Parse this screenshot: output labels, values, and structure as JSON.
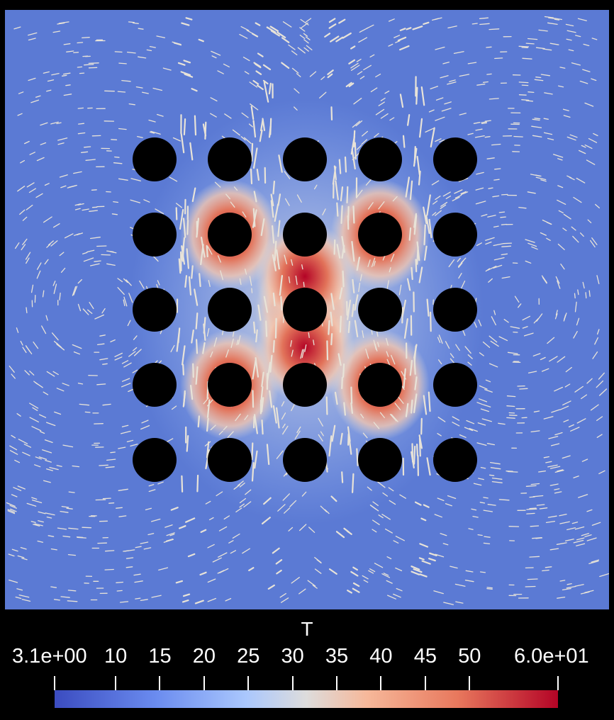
{
  "colorbar": {
    "title": "T",
    "min_label": "3.1e+00",
    "max_label": "6.0e+01",
    "min": 3.1,
    "max": 60,
    "ticks": [
      "10",
      "15",
      "20",
      "25",
      "30",
      "35",
      "40",
      "45",
      "50"
    ],
    "colormap": [
      "#3b4cc0",
      "#dddcdc",
      "#b40426"
    ]
  },
  "field": {
    "background_color": "#5b7ad4",
    "obstacle_color": "#000000",
    "glyph_color": "#e8e3d8",
    "obstacle_rows": 5,
    "obstacle_cols": 5
  }
}
